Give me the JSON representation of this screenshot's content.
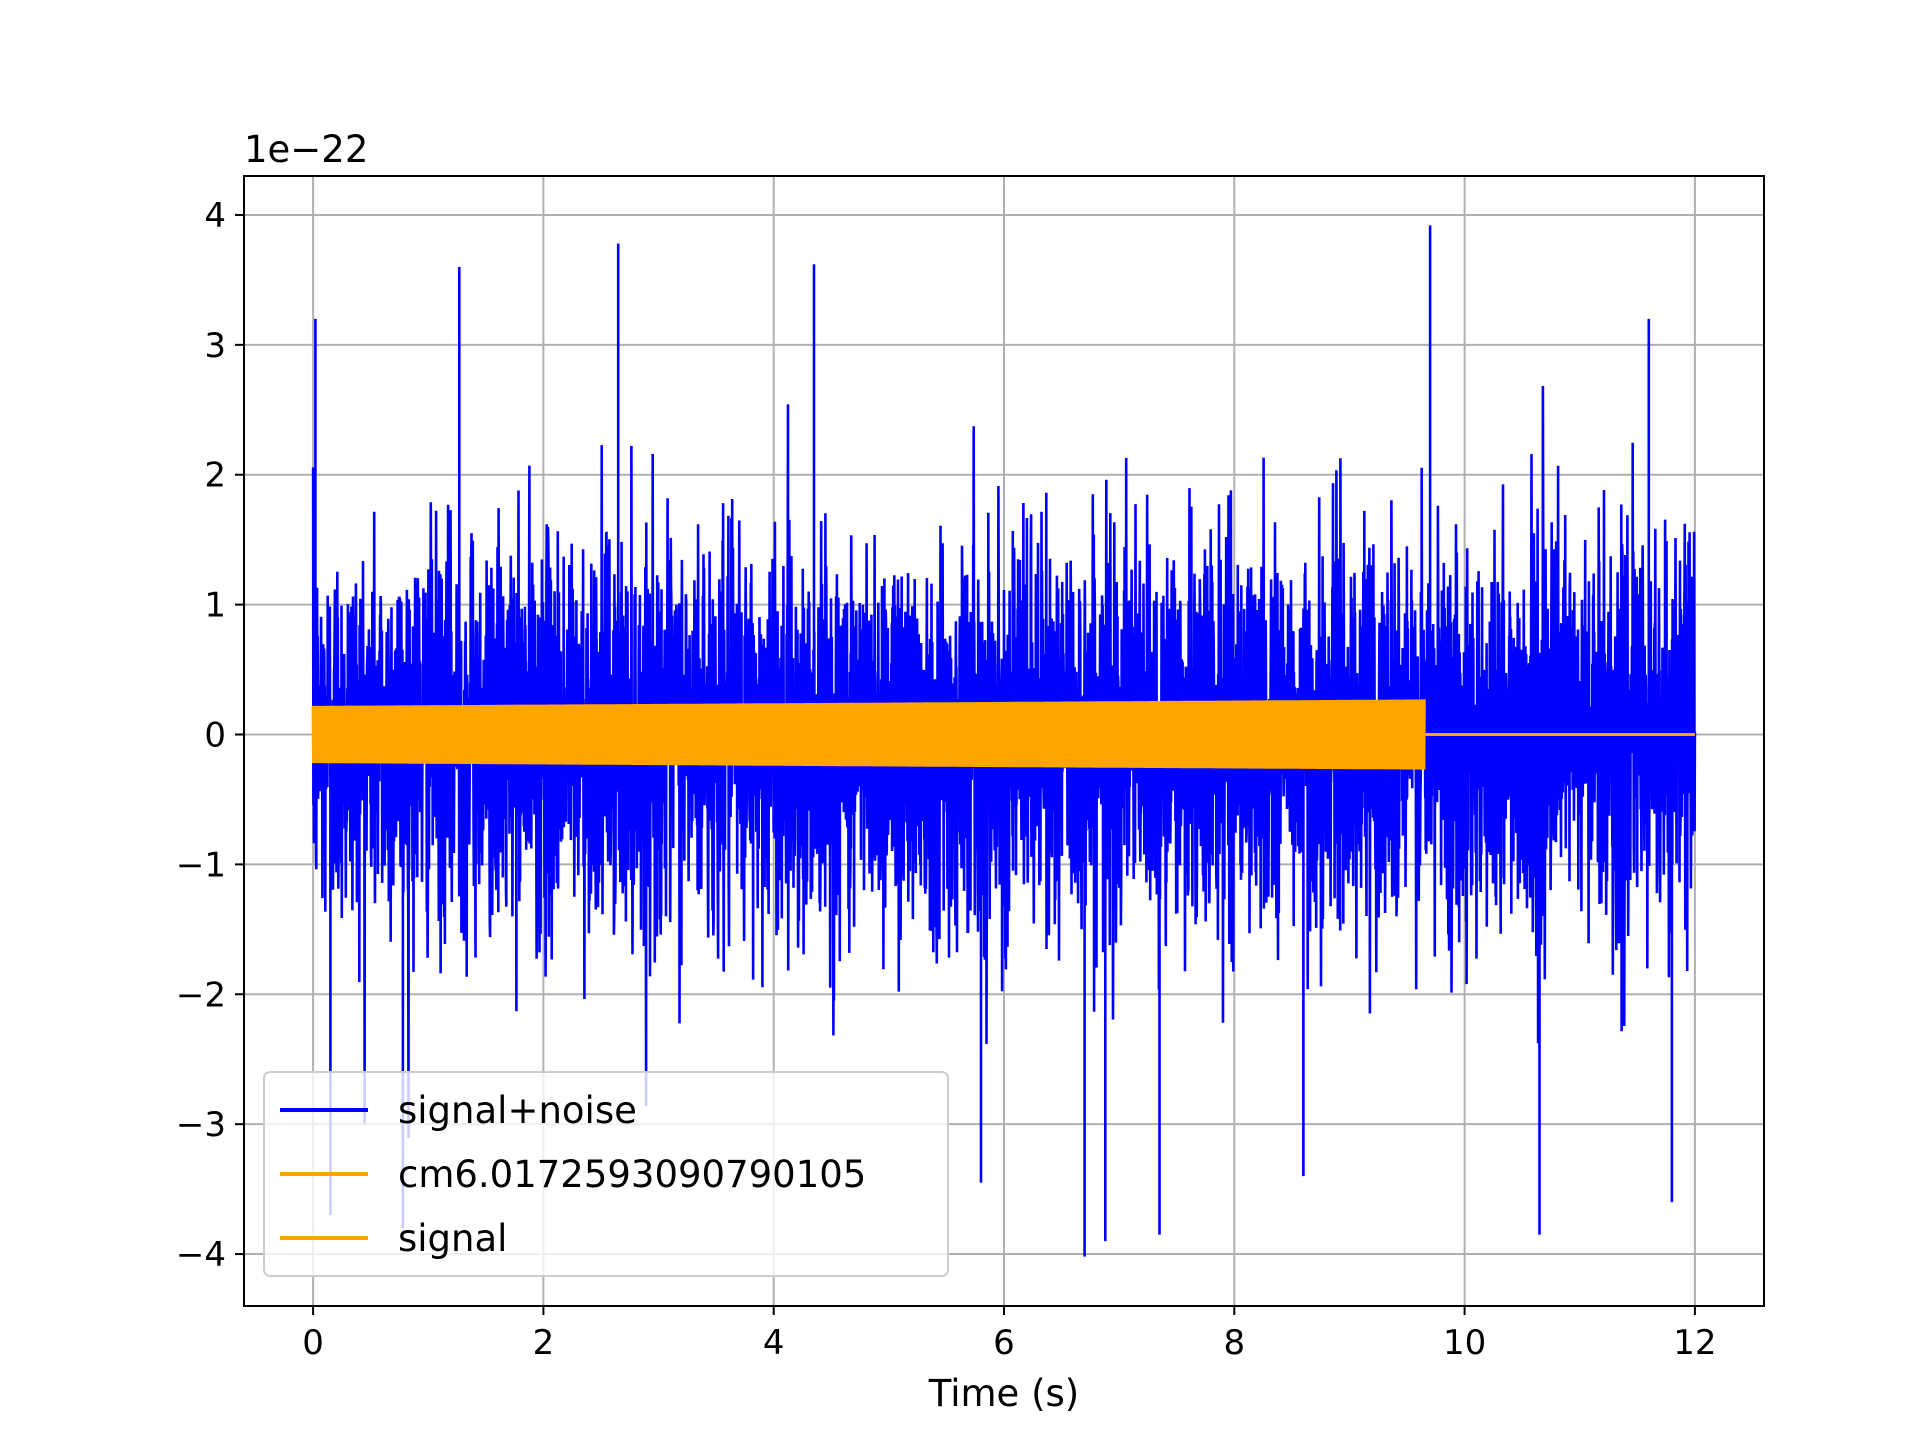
{
  "chart_data": {
    "type": "line",
    "title": "",
    "xlabel": "Time (s)",
    "ylabel": "",
    "y_scale_label": "1e−22",
    "xlim": [
      -0.6,
      12.6
    ],
    "ylim": [
      -4.4,
      4.3
    ],
    "x_ticks": [
      0,
      2,
      4,
      6,
      8,
      10,
      12
    ],
    "y_ticks": [
      -4,
      -3,
      -2,
      -1,
      0,
      1,
      2,
      3,
      4
    ],
    "x_tick_labels": [
      "0",
      "2",
      "4",
      "6",
      "8",
      "10",
      "12"
    ],
    "y_tick_labels": [
      "−4",
      "−3",
      "−2",
      "−1",
      "0",
      "1",
      "2",
      "3",
      "4"
    ],
    "grid": true,
    "legend_position": "lower-left",
    "series": [
      {
        "name": "signal+noise",
        "color": "#0000ff",
        "x_range": [
          0,
          12
        ],
        "rms_amplitude": 0.95,
        "peaks": [
          [
            0.02,
            3.2
          ],
          [
            1.27,
            3.6
          ],
          [
            2.65,
            3.78
          ],
          [
            4.35,
            3.62
          ],
          [
            9.7,
            3.92
          ],
          [
            11.6,
            3.2
          ],
          [
            0.15,
            -3.7
          ],
          [
            0.78,
            -3.8
          ],
          [
            6.7,
            -4.02
          ],
          [
            6.88,
            -3.9
          ],
          [
            7.35,
            -3.85
          ],
          [
            10.65,
            -3.85
          ],
          [
            11.8,
            -3.6
          ],
          [
            5.8,
            -3.45
          ],
          [
            8.6,
            -3.4
          ]
        ]
      },
      {
        "name": "cm6.0172593090790105",
        "color": "#ffa500",
        "segments": [
          {
            "x_range": [
              0,
              9.65
            ],
            "amplitude_start": 0.22,
            "amplitude_end": 0.27
          },
          {
            "x_range": [
              9.65,
              12
            ],
            "amplitude": 0
          }
        ]
      },
      {
        "name": "signal",
        "color": "#ffa500",
        "segments": [
          {
            "x_range": [
              0,
              9.65
            ],
            "amplitude_start": 0.22,
            "amplitude_end": 0.27
          },
          {
            "x_range": [
              9.65,
              12
            ],
            "amplitude": 0
          }
        ]
      }
    ]
  }
}
